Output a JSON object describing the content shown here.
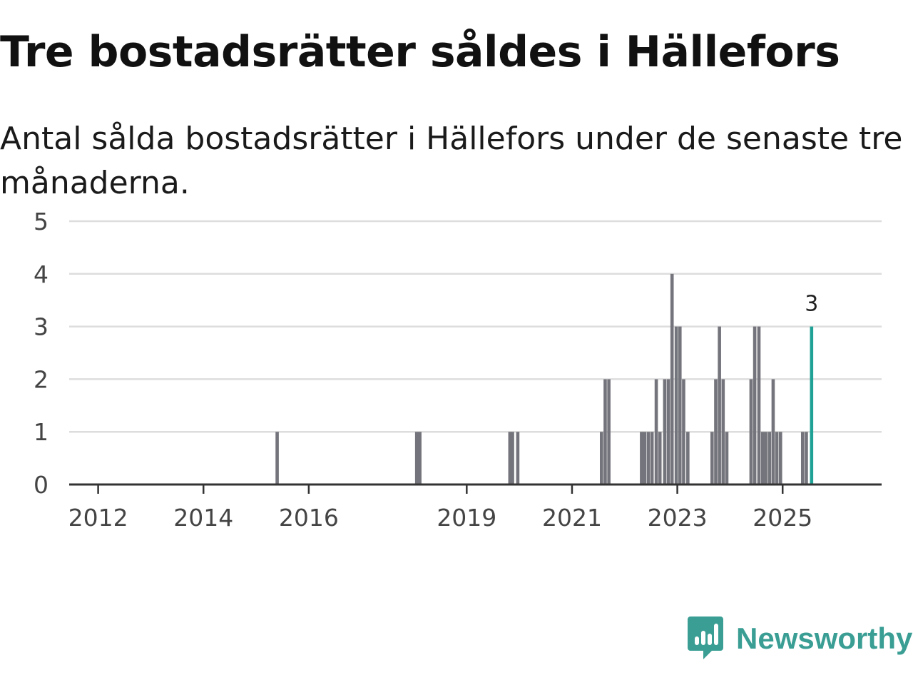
{
  "title": "Tre bostadsrätter såldes i Hällefors",
  "subtitle": "Antal sålda bostadsrätter i Hällefors under de senaste tre månaderna.",
  "brand": {
    "name": "Newsworthy",
    "icon": "newsworthy-logo-icon",
    "color": "#3a9e94"
  },
  "chart_data": {
    "type": "bar",
    "title": "Tre bostadsrätter såldes i Hällefors",
    "xlabel": "",
    "ylabel": "",
    "ylim": [
      0,
      5
    ],
    "y_ticks": [
      "0",
      "1",
      "2",
      "3",
      "4",
      "5"
    ],
    "x_range": [
      2011.45,
      2026.88
    ],
    "x_ticks": [
      {
        "label": "2012",
        "value": 2012.0
      },
      {
        "label": "2014",
        "value": 2014.0
      },
      {
        "label": "2016",
        "value": 2016.0
      },
      {
        "label": "2019",
        "value": 2019.0
      },
      {
        "label": "2021",
        "value": 2021.0
      },
      {
        "label": "2023",
        "value": 2023.0
      },
      {
        "label": "2025",
        "value": 2025.0
      }
    ],
    "grid": true,
    "colors": {
      "bar": "#74747c",
      "highlight": "#1fa196",
      "grid": "#dddddd",
      "axis": "#333333"
    },
    "bars": [
      {
        "x": 2015.4,
        "value": 1
      },
      {
        "x": 2018.05,
        "value": 1
      },
      {
        "x": 2018.11,
        "value": 1
      },
      {
        "x": 2019.82,
        "value": 1
      },
      {
        "x": 2019.87,
        "value": 1
      },
      {
        "x": 2019.97,
        "value": 1
      },
      {
        "x": 2021.56,
        "value": 1
      },
      {
        "x": 2021.63,
        "value": 2
      },
      {
        "x": 2021.7,
        "value": 2
      },
      {
        "x": 2022.32,
        "value": 1
      },
      {
        "x": 2022.38,
        "value": 1
      },
      {
        "x": 2022.45,
        "value": 1
      },
      {
        "x": 2022.52,
        "value": 1
      },
      {
        "x": 2022.6,
        "value": 2
      },
      {
        "x": 2022.67,
        "value": 1
      },
      {
        "x": 2022.76,
        "value": 2
      },
      {
        "x": 2022.83,
        "value": 2
      },
      {
        "x": 2022.9,
        "value": 4
      },
      {
        "x": 2022.98,
        "value": 3
      },
      {
        "x": 2023.05,
        "value": 3
      },
      {
        "x": 2023.12,
        "value": 2
      },
      {
        "x": 2023.2,
        "value": 1
      },
      {
        "x": 2023.66,
        "value": 1
      },
      {
        "x": 2023.73,
        "value": 2
      },
      {
        "x": 2023.8,
        "value": 3
      },
      {
        "x": 2023.87,
        "value": 2
      },
      {
        "x": 2023.94,
        "value": 1
      },
      {
        "x": 2024.4,
        "value": 2
      },
      {
        "x": 2024.47,
        "value": 3
      },
      {
        "x": 2024.55,
        "value": 3
      },
      {
        "x": 2024.62,
        "value": 1
      },
      {
        "x": 2024.68,
        "value": 1
      },
      {
        "x": 2024.75,
        "value": 1
      },
      {
        "x": 2024.82,
        "value": 2
      },
      {
        "x": 2024.89,
        "value": 1
      },
      {
        "x": 2024.96,
        "value": 1
      },
      {
        "x": 2025.38,
        "value": 1
      },
      {
        "x": 2025.45,
        "value": 1
      },
      {
        "x": 2025.55,
        "value": 3,
        "highlight": true,
        "label": "3"
      }
    ]
  }
}
